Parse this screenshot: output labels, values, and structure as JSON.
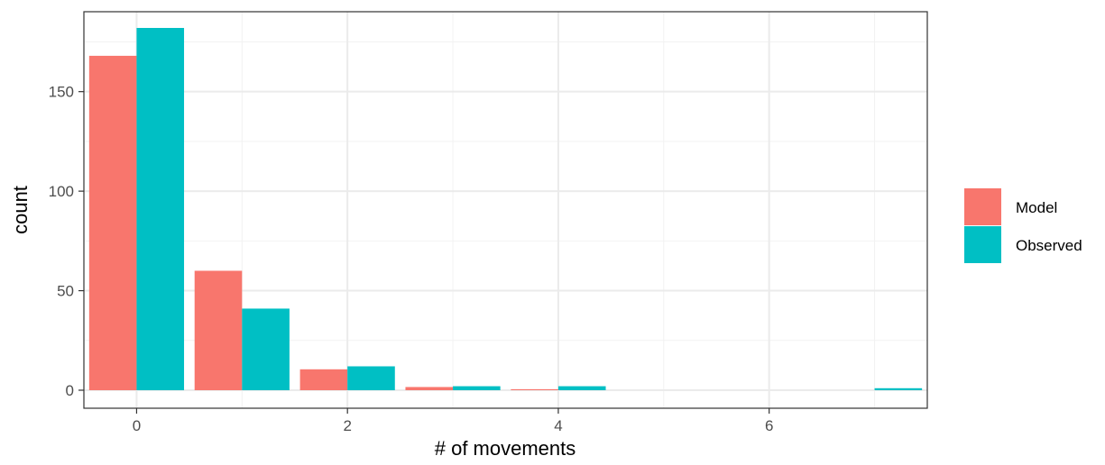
{
  "chart_data": {
    "type": "bar",
    "title": "",
    "xlabel": "# of movements",
    "ylabel": "count",
    "x_categories": [
      0,
      1,
      2,
      3,
      4,
      7
    ],
    "series": [
      {
        "name": "Model",
        "color": "#F8766D",
        "values": [
          168,
          60,
          10.5,
          1.6,
          0.5,
          0
        ]
      },
      {
        "name": "Observed",
        "color": "#00BFC4",
        "values": [
          182,
          41,
          12,
          2,
          2,
          1
        ]
      }
    ],
    "x_ticks": [
      {
        "value": 0,
        "label": "0"
      },
      {
        "value": 2,
        "label": "2"
      },
      {
        "value": 4,
        "label": "4"
      },
      {
        "value": 6,
        "label": "6"
      }
    ],
    "y_ticks": [
      {
        "value": 0,
        "label": "0"
      },
      {
        "value": 50,
        "label": "50"
      },
      {
        "value": 100,
        "label": "100"
      },
      {
        "value": 150,
        "label": "150"
      }
    ],
    "xlim": [
      -0.5,
      7.5
    ],
    "ylim": [
      0,
      182
    ],
    "grid": true,
    "legend_position": "right",
    "theme": "bw"
  }
}
